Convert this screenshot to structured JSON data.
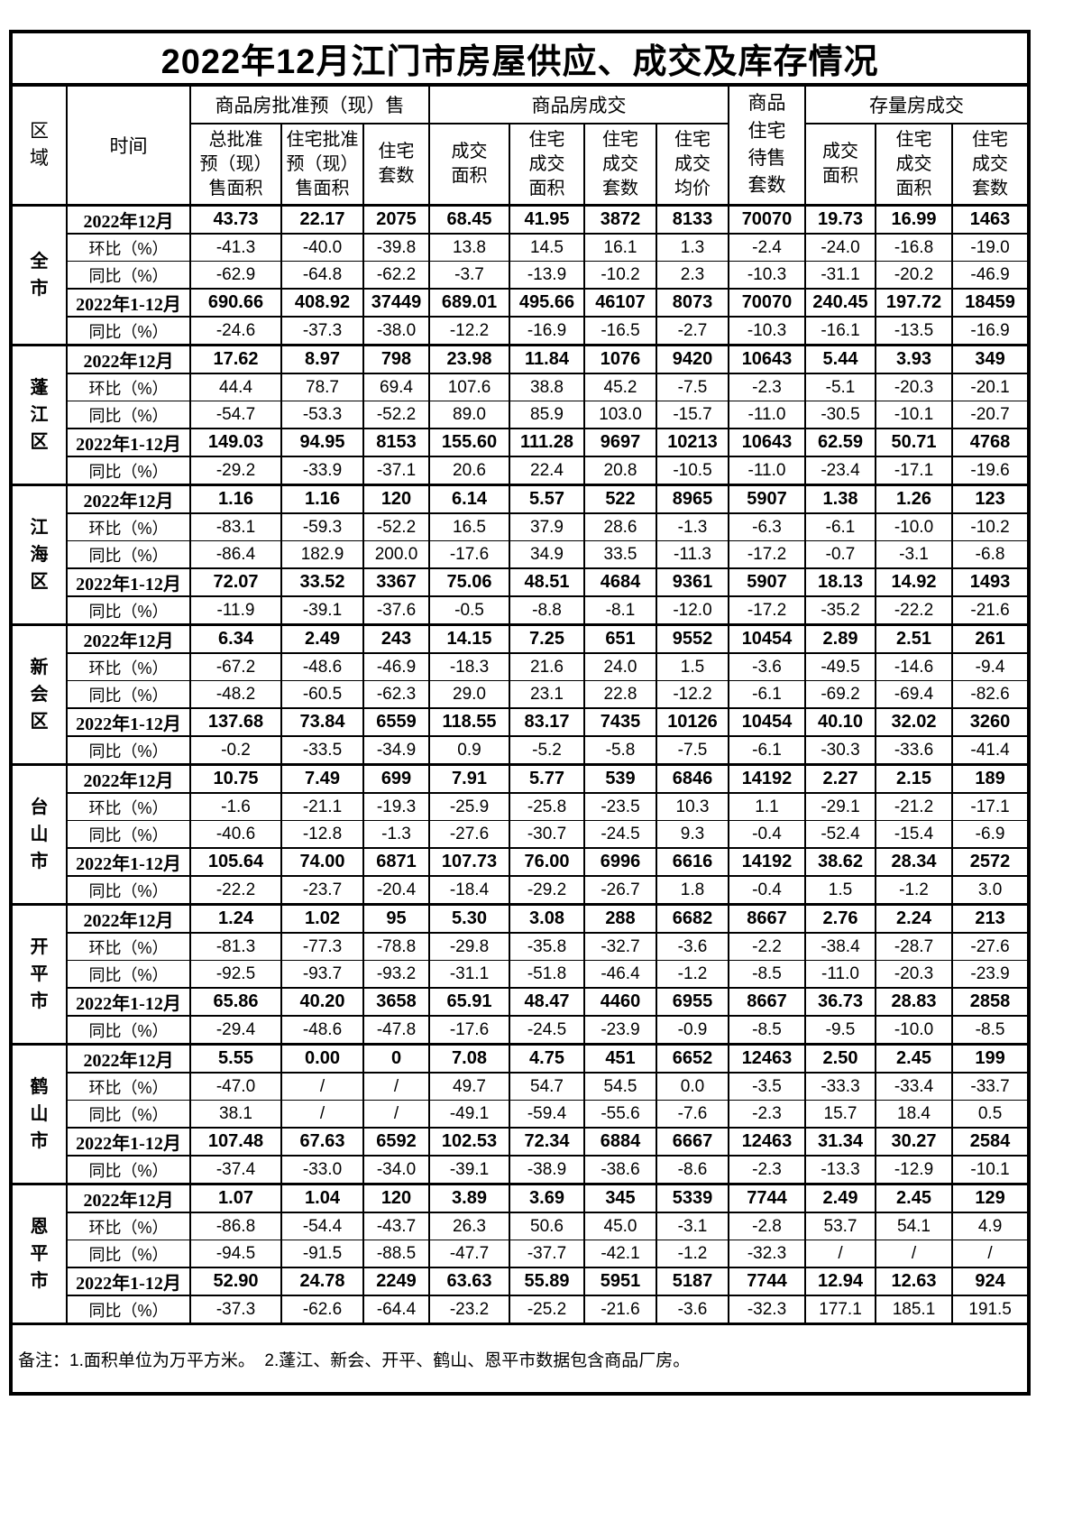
{
  "title": "2022年12月江门市房屋供应、成交及库存情况",
  "header": {
    "region_label": "区\n域",
    "time_label": "时间",
    "group1": {
      "label": "商品房批准预（现）售",
      "cols": [
        "总批准\n预（现）\n售面积",
        "住宅批准\n预（现）\n售面积",
        "住宅\n套数"
      ]
    },
    "group2": {
      "label": "商品房成交",
      "cols": [
        "成交\n面积",
        "住宅\n成交\n面积",
        "住宅\n成交\n套数",
        "住宅\n成交\n均价"
      ]
    },
    "pending_label": "商品\n住宅\n待售\n套数",
    "group3": {
      "label": "存量房成交",
      "cols": [
        "成交\n面积",
        "住宅\n成交\n面积",
        "住宅\n成交\n套数"
      ]
    }
  },
  "regions": [
    {
      "name": "全市",
      "rows": [
        {
          "label": "2022年12月",
          "bold": true,
          "values": [
            "43.73",
            "22.17",
            "2075",
            "68.45",
            "41.95",
            "3872",
            "8133",
            "70070",
            "19.73",
            "16.99",
            "1463"
          ]
        },
        {
          "label": "环比（%）",
          "bold": false,
          "values": [
            "-41.3",
            "-40.0",
            "-39.8",
            "13.8",
            "14.5",
            "16.1",
            "1.3",
            "-2.4",
            "-24.0",
            "-16.8",
            "-19.0"
          ]
        },
        {
          "label": "同比（%）",
          "bold": false,
          "values": [
            "-62.9",
            "-64.8",
            "-62.2",
            "-3.7",
            "-13.9",
            "-10.2",
            "2.3",
            "-10.3",
            "-31.1",
            "-20.2",
            "-46.9"
          ]
        },
        {
          "label": "2022年1-12月",
          "bold": true,
          "values": [
            "690.66",
            "408.92",
            "37449",
            "689.01",
            "495.66",
            "46107",
            "8073",
            "70070",
            "240.45",
            "197.72",
            "18459"
          ]
        },
        {
          "label": "同比（%）",
          "bold": false,
          "values": [
            "-24.6",
            "-37.3",
            "-38.0",
            "-12.2",
            "-16.9",
            "-16.5",
            "-2.7",
            "-10.3",
            "-16.1",
            "-13.5",
            "-16.9"
          ]
        }
      ]
    },
    {
      "name": "蓬江区",
      "rows": [
        {
          "label": "2022年12月",
          "bold": true,
          "values": [
            "17.62",
            "8.97",
            "798",
            "23.98",
            "11.84",
            "1076",
            "9420",
            "10643",
            "5.44",
            "3.93",
            "349"
          ]
        },
        {
          "label": "环比（%）",
          "bold": false,
          "values": [
            "44.4",
            "78.7",
            "69.4",
            "107.6",
            "38.8",
            "45.2",
            "-7.5",
            "-2.3",
            "-5.1",
            "-20.3",
            "-20.1"
          ]
        },
        {
          "label": "同比（%）",
          "bold": false,
          "values": [
            "-54.7",
            "-53.3",
            "-52.2",
            "89.0",
            "85.9",
            "103.0",
            "-15.7",
            "-11.0",
            "-30.5",
            "-10.1",
            "-20.7"
          ]
        },
        {
          "label": "2022年1-12月",
          "bold": true,
          "values": [
            "149.03",
            "94.95",
            "8153",
            "155.60",
            "111.28",
            "9697",
            "10213",
            "10643",
            "62.59",
            "50.71",
            "4768"
          ]
        },
        {
          "label": "同比（%）",
          "bold": false,
          "values": [
            "-29.2",
            "-33.9",
            "-37.1",
            "20.6",
            "22.4",
            "20.8",
            "-10.5",
            "-11.0",
            "-23.4",
            "-17.1",
            "-19.6"
          ]
        }
      ]
    },
    {
      "name": "江海区",
      "rows": [
        {
          "label": "2022年12月",
          "bold": true,
          "values": [
            "1.16",
            "1.16",
            "120",
            "6.14",
            "5.57",
            "522",
            "8965",
            "5907",
            "1.38",
            "1.26",
            "123"
          ]
        },
        {
          "label": "环比（%）",
          "bold": false,
          "values": [
            "-83.1",
            "-59.3",
            "-52.2",
            "16.5",
            "37.9",
            "28.6",
            "-1.3",
            "-6.3",
            "-6.1",
            "-10.0",
            "-10.2"
          ]
        },
        {
          "label": "同比（%）",
          "bold": false,
          "values": [
            "-86.4",
            "182.9",
            "200.0",
            "-17.6",
            "34.9",
            "33.5",
            "-11.3",
            "-17.2",
            "-0.7",
            "-3.1",
            "-6.8"
          ]
        },
        {
          "label": "2022年1-12月",
          "bold": true,
          "values": [
            "72.07",
            "33.52",
            "3367",
            "75.06",
            "48.51",
            "4684",
            "9361",
            "5907",
            "18.13",
            "14.92",
            "1493"
          ]
        },
        {
          "label": "同比（%）",
          "bold": false,
          "values": [
            "-11.9",
            "-39.1",
            "-37.6",
            "-0.5",
            "-8.8",
            "-8.1",
            "-12.0",
            "-17.2",
            "-35.2",
            "-22.2",
            "-21.6"
          ]
        }
      ]
    },
    {
      "name": "新会区",
      "rows": [
        {
          "label": "2022年12月",
          "bold": true,
          "values": [
            "6.34",
            "2.49",
            "243",
            "14.15",
            "7.25",
            "651",
            "9552",
            "10454",
            "2.89",
            "2.51",
            "261"
          ]
        },
        {
          "label": "环比（%）",
          "bold": false,
          "values": [
            "-67.2",
            "-48.6",
            "-46.9",
            "-18.3",
            "21.6",
            "24.0",
            "1.5",
            "-3.6",
            "-49.5",
            "-14.6",
            "-9.4"
          ]
        },
        {
          "label": "同比（%）",
          "bold": false,
          "values": [
            "-48.2",
            "-60.5",
            "-62.3",
            "29.0",
            "23.1",
            "22.8",
            "-12.2",
            "-6.1",
            "-69.2",
            "-69.4",
            "-82.6"
          ]
        },
        {
          "label": "2022年1-12月",
          "bold": true,
          "values": [
            "137.68",
            "73.84",
            "6559",
            "118.55",
            "83.17",
            "7435",
            "10126",
            "10454",
            "40.10",
            "32.02",
            "3260"
          ]
        },
        {
          "label": "同比（%）",
          "bold": false,
          "values": [
            "-0.2",
            "-33.5",
            "-34.9",
            "0.9",
            "-5.2",
            "-5.8",
            "-7.5",
            "-6.1",
            "-30.3",
            "-33.6",
            "-41.4"
          ]
        }
      ]
    },
    {
      "name": "台山市",
      "rows": [
        {
          "label": "2022年12月",
          "bold": true,
          "values": [
            "10.75",
            "7.49",
            "699",
            "7.91",
            "5.77",
            "539",
            "6846",
            "14192",
            "2.27",
            "2.15",
            "189"
          ]
        },
        {
          "label": "环比（%）",
          "bold": false,
          "values": [
            "-1.6",
            "-21.1",
            "-19.3",
            "-25.9",
            "-25.8",
            "-23.5",
            "10.3",
            "1.1",
            "-29.1",
            "-21.2",
            "-17.1"
          ]
        },
        {
          "label": "同比（%）",
          "bold": false,
          "values": [
            "-40.6",
            "-12.8",
            "-1.3",
            "-27.6",
            "-30.7",
            "-24.5",
            "9.3",
            "-0.4",
            "-52.4",
            "-15.4",
            "-6.9"
          ]
        },
        {
          "label": "2022年1-12月",
          "bold": true,
          "values": [
            "105.64",
            "74.00",
            "6871",
            "107.73",
            "76.00",
            "6996",
            "6616",
            "14192",
            "38.62",
            "28.34",
            "2572"
          ]
        },
        {
          "label": "同比（%）",
          "bold": false,
          "values": [
            "-22.2",
            "-23.7",
            "-20.4",
            "-18.4",
            "-29.2",
            "-26.7",
            "1.8",
            "-0.4",
            "1.5",
            "-1.2",
            "3.0"
          ]
        }
      ]
    },
    {
      "name": "开平市",
      "rows": [
        {
          "label": "2022年12月",
          "bold": true,
          "values": [
            "1.24",
            "1.02",
            "95",
            "5.30",
            "3.08",
            "288",
            "6682",
            "8667",
            "2.76",
            "2.24",
            "213"
          ]
        },
        {
          "label": "环比（%）",
          "bold": false,
          "values": [
            "-81.3",
            "-77.3",
            "-78.8",
            "-29.8",
            "-35.8",
            "-32.7",
            "-3.6",
            "-2.2",
            "-38.4",
            "-28.7",
            "-27.6"
          ]
        },
        {
          "label": "同比（%）",
          "bold": false,
          "values": [
            "-92.5",
            "-93.7",
            "-93.2",
            "-31.1",
            "-51.8",
            "-46.4",
            "-1.2",
            "-8.5",
            "-11.0",
            "-20.3",
            "-23.9"
          ]
        },
        {
          "label": "2022年1-12月",
          "bold": true,
          "values": [
            "65.86",
            "40.20",
            "3658",
            "65.91",
            "48.47",
            "4460",
            "6955",
            "8667",
            "36.73",
            "28.83",
            "2858"
          ]
        },
        {
          "label": "同比（%）",
          "bold": false,
          "values": [
            "-29.4",
            "-48.6",
            "-47.8",
            "-17.6",
            "-24.5",
            "-23.9",
            "-0.9",
            "-8.5",
            "-9.5",
            "-10.0",
            "-8.5"
          ]
        }
      ]
    },
    {
      "name": "鹤山市",
      "rows": [
        {
          "label": "2022年12月",
          "bold": true,
          "values": [
            "5.55",
            "0.00",
            "0",
            "7.08",
            "4.75",
            "451",
            "6652",
            "12463",
            "2.50",
            "2.45",
            "199"
          ]
        },
        {
          "label": "环比（%）",
          "bold": false,
          "values": [
            "-47.0",
            "/",
            "/",
            "49.7",
            "54.7",
            "54.5",
            "0.0",
            "-3.5",
            "-33.3",
            "-33.4",
            "-33.7"
          ]
        },
        {
          "label": "同比（%）",
          "bold": false,
          "values": [
            "38.1",
            "/",
            "/",
            "-49.1",
            "-59.4",
            "-55.6",
            "-7.6",
            "-2.3",
            "15.7",
            "18.4",
            "0.5"
          ]
        },
        {
          "label": "2022年1-12月",
          "bold": true,
          "values": [
            "107.48",
            "67.63",
            "6592",
            "102.53",
            "72.34",
            "6884",
            "6667",
            "12463",
            "31.34",
            "30.27",
            "2584"
          ]
        },
        {
          "label": "同比（%）",
          "bold": false,
          "values": [
            "-37.4",
            "-33.0",
            "-34.0",
            "-39.1",
            "-38.9",
            "-38.6",
            "-8.6",
            "-2.3",
            "-13.3",
            "-12.9",
            "-10.1"
          ]
        }
      ]
    },
    {
      "name": "恩平市",
      "rows": [
        {
          "label": "2022年12月",
          "bold": true,
          "values": [
            "1.07",
            "1.04",
            "120",
            "3.89",
            "3.69",
            "345",
            "5339",
            "7744",
            "2.49",
            "2.45",
            "129"
          ]
        },
        {
          "label": "环比（%）",
          "bold": false,
          "values": [
            "-86.8",
            "-54.4",
            "-43.7",
            "26.3",
            "50.6",
            "45.0",
            "-3.1",
            "-2.8",
            "53.7",
            "54.1",
            "4.9"
          ]
        },
        {
          "label": "同比（%）",
          "bold": false,
          "values": [
            "-94.5",
            "-91.5",
            "-88.5",
            "-47.7",
            "-37.7",
            "-42.1",
            "-1.2",
            "-32.3",
            "/",
            "/",
            "/"
          ]
        },
        {
          "label": "2022年1-12月",
          "bold": true,
          "values": [
            "52.90",
            "24.78",
            "2249",
            "63.63",
            "55.89",
            "5951",
            "5187",
            "7744",
            "12.94",
            "12.63",
            "924"
          ]
        },
        {
          "label": "同比（%）",
          "bold": false,
          "values": [
            "-37.3",
            "-62.6",
            "-64.4",
            "-23.2",
            "-25.2",
            "-21.6",
            "-3.6",
            "-32.3",
            "177.1",
            "185.1",
            "191.5"
          ]
        }
      ]
    }
  ],
  "note": "备注：1.面积单位为万平方米。  2.蓬江、新会、开平、鹤山、恩平市数据包含商品厂房。"
}
